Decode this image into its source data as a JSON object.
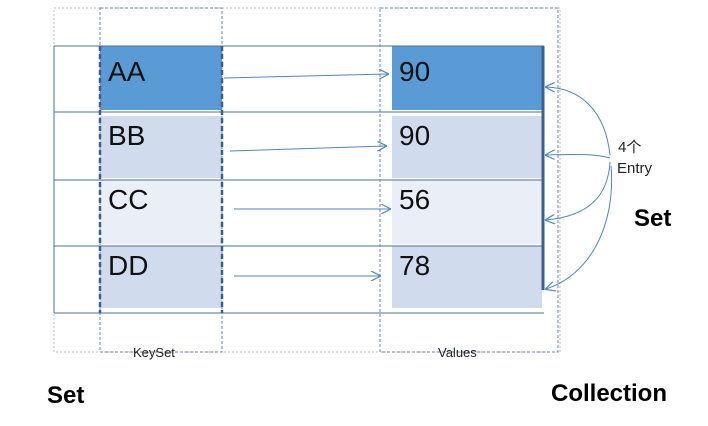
{
  "keys": [
    "AA",
    "BB",
    "CC",
    "DD"
  ],
  "values": [
    "90",
    "90",
    "56",
    "78"
  ],
  "keyset_label": "KeySet",
  "values_label": "Values",
  "entry_label_line1": "4个",
  "entry_label_line2": "Entry",
  "set_right_label": "Set",
  "set_left_label": "Set",
  "collection_label": "Collection",
  "colors": {
    "highlight": "#5b9bd5",
    "cell_dark": "#d0dcee",
    "cell_light": "#e9eef7",
    "table_line": "#4f6f98",
    "arrow": "#4f86c6",
    "dashed": "#6a86b0",
    "dotted": "#bfbfbf"
  }
}
